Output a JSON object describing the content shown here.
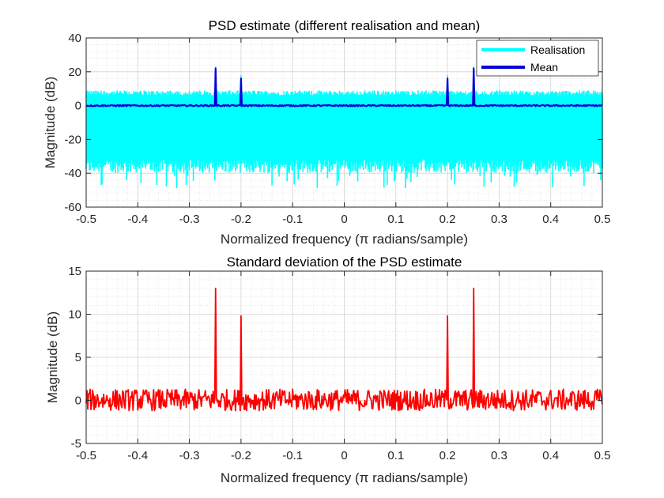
{
  "chart_data": [
    {
      "type": "line",
      "title": "PSD estimate (different realisation and mean)",
      "xlabel": "Normalized frequency (π radians/sample)",
      "ylabel": "Magnitude (dB)",
      "xlim": [
        -0.5,
        0.5
      ],
      "ylim": [
        -60,
        40
      ],
      "xticks": [
        "-0.5",
        "-0.4",
        "-0.3",
        "-0.2",
        "-0.1",
        "0",
        "0.1",
        "0.2",
        "0.3",
        "0.4",
        "0.5"
      ],
      "yticks": [
        "-60",
        "-40",
        "-20",
        "0",
        "20",
        "40"
      ],
      "grid": true,
      "minor_grid": true,
      "legend_position": "top-right",
      "series": [
        {
          "name": "Realisation",
          "color": "#00ffff",
          "style": "noisy band",
          "baseline_db": 0,
          "upper_envelope_db": 8,
          "typical_lower_db": -35,
          "min_db": -49,
          "peaks": [
            {
              "x": -0.25,
              "y": 23
            },
            {
              "x": -0.2,
              "y": 18
            },
            {
              "x": 0.2,
              "y": 18
            },
            {
              "x": 0.25,
              "y": 23
            }
          ]
        },
        {
          "name": "Mean",
          "color": "#0000d9",
          "baseline_db": 0,
          "peaks": [
            {
              "x": -0.25,
              "y": 22
            },
            {
              "x": -0.2,
              "y": 16
            },
            {
              "x": 0.2,
              "y": 16
            },
            {
              "x": 0.25,
              "y": 22
            }
          ]
        }
      ]
    },
    {
      "type": "line",
      "title": "Standard deviation of the PSD estimate",
      "xlabel": "Normalized frequency (π radians/sample)",
      "ylabel": "Magnitude (dB)",
      "xlim": [
        -0.5,
        0.5
      ],
      "ylim": [
        -5,
        15
      ],
      "xticks": [
        "-0.5",
        "-0.4",
        "-0.3",
        "-0.2",
        "-0.1",
        "0",
        "0.1",
        "0.2",
        "0.3",
        "0.4",
        "0.5"
      ],
      "yticks": [
        "-5",
        "0",
        "5",
        "10",
        "15"
      ],
      "grid": true,
      "minor_grid": true,
      "series": [
        {
          "color": "#ff0000",
          "baseline_db": 0,
          "noise_range_db": [
            -1.2,
            1.3
          ],
          "peaks": [
            {
              "x": -0.25,
              "y": 13
            },
            {
              "x": -0.2,
              "y": 9.8
            },
            {
              "x": 0.2,
              "y": 9.8
            },
            {
              "x": 0.25,
              "y": 13
            }
          ]
        }
      ]
    }
  ]
}
